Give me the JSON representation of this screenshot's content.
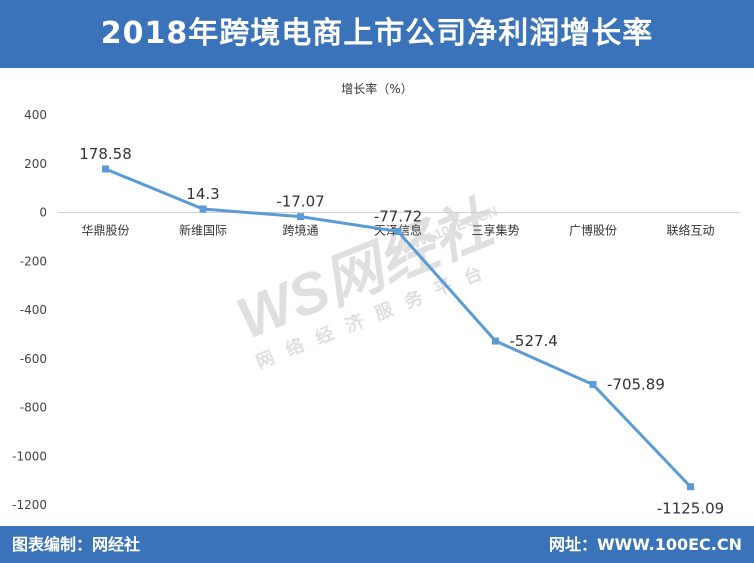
{
  "header": {
    "title": "2018年跨境电商上市公司净利润增长率"
  },
  "footer": {
    "left_text": "图表编制：网经社",
    "right_text": "网址：WWW.100EC.CN"
  },
  "watermark": {
    "main": "WS网经社",
    "sub": "网络经济服务平台",
    "url": "WWW.100EC.CN"
  },
  "colors": {
    "header_bg": "#3b73ba",
    "line": "#5b9bd5"
  },
  "chart_data": {
    "type": "line",
    "ylabel": "增长率（%）",
    "ylim": [
      -1200,
      400
    ],
    "yticks": [
      400,
      200,
      0,
      -200,
      -400,
      -600,
      -800,
      -1000,
      -1200
    ],
    "categories": [
      "华鼎股份",
      "新维国际",
      "跨境通",
      "天泽信息",
      "三享集势",
      "广博股份",
      "联络互动"
    ],
    "series": [
      {
        "values": [
          178.58,
          14.3,
          -17.07,
          -77.72,
          -527.4,
          -705.89,
          -1125.09
        ],
        "labels": [
          "178.58",
          "14.3",
          "-17.07",
          "-77.72",
          "-527.4",
          "-705.89",
          "-1125.09"
        ]
      }
    ],
    "grid": false,
    "legend": "none"
  }
}
